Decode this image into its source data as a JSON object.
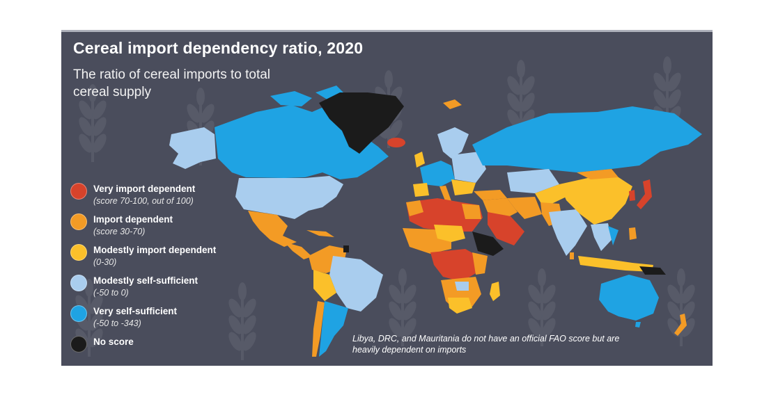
{
  "title": "Cereal import dependency ratio, 2020",
  "subtitle": "The ratio of cereal imports to total cereal supply",
  "legend": [
    {
      "label": "Very import dependent",
      "range": "(score 70-100, out of 100)",
      "color": "#d7432b"
    },
    {
      "label": "Import dependent",
      "range": "(score 30-70)",
      "color": "#f39b25"
    },
    {
      "label": "Modestly import dependent",
      "range": "(0-30)",
      "color": "#fbc02a"
    },
    {
      "label": "Modestly self-sufficient",
      "range": "(-50 to 0)",
      "color": "#a9cdee"
    },
    {
      "label": "Very self-sufficient",
      "range": "(-50 to -343)",
      "color": "#1fa3e3"
    },
    {
      "label": "No score",
      "range": "",
      "color": "#1b1b1b"
    }
  ],
  "footnote": "Libya, DRC, and Mauritania do not have an official FAO score but are heavily dependent on imports",
  "colors": {
    "panel_bg": "#4a4d5c",
    "wheat_motif": "#575a68"
  }
}
